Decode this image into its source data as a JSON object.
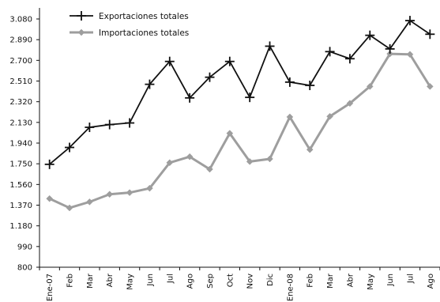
{
  "chart_data": {
    "type": "line",
    "categories": [
      "Ene-07",
      "Feb",
      "Mar",
      "Abr",
      "May",
      "Jun",
      "Jul",
      "Ago",
      "Sep",
      "Oct",
      "Nov",
      "Dic",
      "Ene-08",
      "Feb",
      "Mar",
      "Abr",
      "May",
      "Jun",
      "Jul",
      "Ago"
    ],
    "series": [
      {
        "name": "Exportaciones totales",
        "color": "#111111",
        "marker": "plus",
        "values": [
          1745,
          1900,
          2085,
          2110,
          2125,
          2480,
          2690,
          2355,
          2545,
          2690,
          2360,
          2830,
          2500,
          2470,
          2780,
          2715,
          2930,
          2805,
          3065,
          2940
        ]
      },
      {
        "name": "Importaciones totales",
        "color": "#9e9e9e",
        "marker": "diamond",
        "values": [
          1430,
          1345,
          1400,
          1470,
          1485,
          1525,
          1760,
          1815,
          1700,
          2030,
          1770,
          1795,
          2180,
          1880,
          2185,
          2305,
          2460,
          2760,
          2755,
          2460
        ]
      }
    ],
    "yticks": [
      "800",
      "990",
      "1.180",
      "1.370",
      "1.560",
      "1.750",
      "1.940",
      "2.130",
      "2.320",
      "2.510",
      "2.700",
      "2.890",
      "3.080"
    ],
    "ylim": [
      800,
      3080
    ],
    "grid": false,
    "legend_position": "top-left",
    "title": "",
    "xlabel": "",
    "ylabel": ""
  }
}
